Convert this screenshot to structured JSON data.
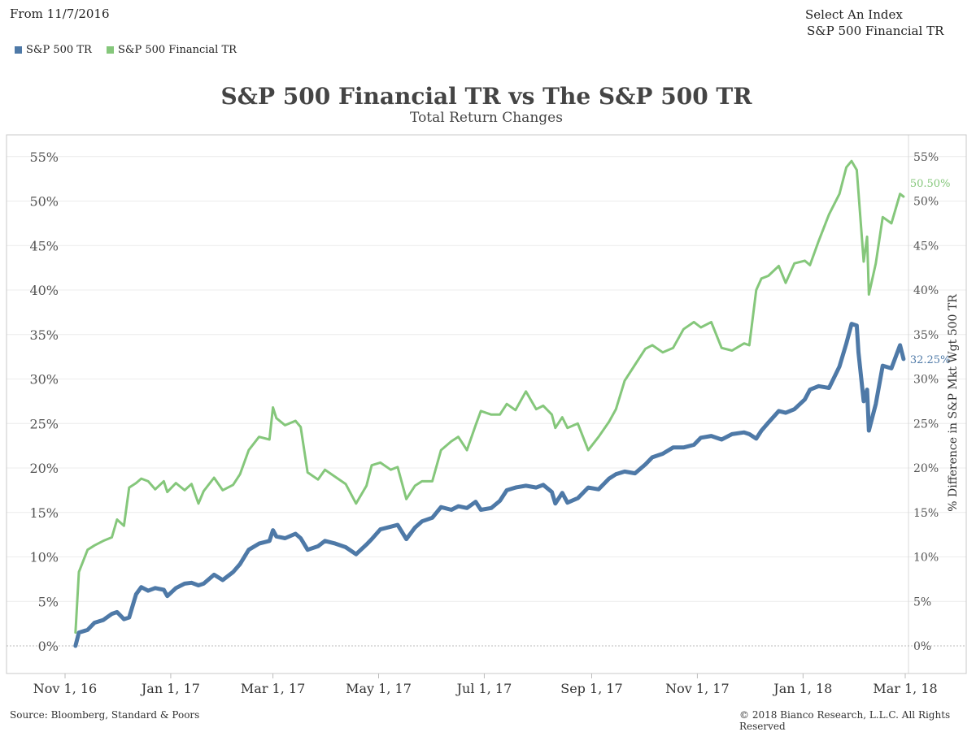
{
  "header": {
    "from_label": "From 11/7/2016",
    "index_selector_label": "Select An Index",
    "index_selector_value": "S&P 500 Financial TR"
  },
  "footer": {
    "source": "Source: Bloomberg, Standard & Poors",
    "copyright": "© 2018 Bianco Research, L.L.C. All Rights Reserved"
  },
  "chart_data": {
    "type": "line",
    "title": "S&P 500 Financial TR vs The S&P 500 TR",
    "subtitle": "Total Return Changes",
    "ylabel": "",
    "y2label": "% Difference in S&P Mkt Wgt 500 TR",
    "xlabel": "",
    "ylim": [
      0,
      55
    ],
    "yticks": [
      "0%",
      "5%",
      "10%",
      "15%",
      "20%",
      "25%",
      "30%",
      "35%",
      "40%",
      "45%",
      "50%",
      "55%"
    ],
    "xlim": [
      "2016-11-01",
      "2018-03-01"
    ],
    "xticks": [
      {
        "date": "2016-11-01",
        "label": "Nov 1, 16"
      },
      {
        "date": "2017-01-01",
        "label": "Jan 1, 17"
      },
      {
        "date": "2017-03-01",
        "label": "Mar 1, 17"
      },
      {
        "date": "2017-05-01",
        "label": "May 1, 17"
      },
      {
        "date": "2017-07-01",
        "label": "Jul 1, 17"
      },
      {
        "date": "2017-09-01",
        "label": "Sep 1, 17"
      },
      {
        "date": "2017-11-01",
        "label": "Nov 1, 17"
      },
      {
        "date": "2018-01-01",
        "label": "Jan 1, 18"
      },
      {
        "date": "2018-03-01",
        "label": "Mar 1, 18"
      }
    ],
    "grid": true,
    "legend_position": "top-left",
    "series": [
      {
        "name": "S&P 500 TR",
        "color": "#4e79a7",
        "end_label": "32.25%",
        "points": [
          [
            "2016-11-07",
            0.0
          ],
          [
            "2016-11-09",
            1.5
          ],
          [
            "2016-11-14",
            1.8
          ],
          [
            "2016-11-18",
            2.6
          ],
          [
            "2016-11-23",
            2.9
          ],
          [
            "2016-11-28",
            3.6
          ],
          [
            "2016-12-01",
            3.8
          ],
          [
            "2016-12-05",
            3.0
          ],
          [
            "2016-12-08",
            3.2
          ],
          [
            "2016-12-12",
            5.8
          ],
          [
            "2016-12-15",
            6.6
          ],
          [
            "2016-12-19",
            6.2
          ],
          [
            "2016-12-23",
            6.5
          ],
          [
            "2016-12-28",
            6.3
          ],
          [
            "2016-12-30",
            5.6
          ],
          [
            "2017-01-04",
            6.5
          ],
          [
            "2017-01-09",
            7.0
          ],
          [
            "2017-01-13",
            7.1
          ],
          [
            "2017-01-17",
            6.8
          ],
          [
            "2017-01-20",
            7.0
          ],
          [
            "2017-01-26",
            8.0
          ],
          [
            "2017-01-31",
            7.4
          ],
          [
            "2017-02-06",
            8.3
          ],
          [
            "2017-02-10",
            9.2
          ],
          [
            "2017-02-15",
            10.8
          ],
          [
            "2017-02-21",
            11.5
          ],
          [
            "2017-02-27",
            11.8
          ],
          [
            "2017-03-01",
            13.0
          ],
          [
            "2017-03-03",
            12.3
          ],
          [
            "2017-03-08",
            12.1
          ],
          [
            "2017-03-14",
            12.6
          ],
          [
            "2017-03-17",
            12.1
          ],
          [
            "2017-03-21",
            10.8
          ],
          [
            "2017-03-27",
            11.2
          ],
          [
            "2017-03-31",
            11.8
          ],
          [
            "2017-04-06",
            11.5
          ],
          [
            "2017-04-12",
            11.1
          ],
          [
            "2017-04-18",
            10.3
          ],
          [
            "2017-04-24",
            11.4
          ],
          [
            "2017-04-27",
            12.0
          ],
          [
            "2017-05-02",
            13.1
          ],
          [
            "2017-05-08",
            13.4
          ],
          [
            "2017-05-12",
            13.6
          ],
          [
            "2017-05-17",
            12.0
          ],
          [
            "2017-05-22",
            13.3
          ],
          [
            "2017-05-26",
            14.0
          ],
          [
            "2017-06-01",
            14.4
          ],
          [
            "2017-06-06",
            15.6
          ],
          [
            "2017-06-12",
            15.3
          ],
          [
            "2017-06-16",
            15.7
          ],
          [
            "2017-06-21",
            15.5
          ],
          [
            "2017-06-26",
            16.2
          ],
          [
            "2017-06-29",
            15.3
          ],
          [
            "2017-07-05",
            15.5
          ],
          [
            "2017-07-10",
            16.3
          ],
          [
            "2017-07-14",
            17.5
          ],
          [
            "2017-07-19",
            17.8
          ],
          [
            "2017-07-25",
            18.0
          ],
          [
            "2017-07-31",
            17.8
          ],
          [
            "2017-08-04",
            18.1
          ],
          [
            "2017-08-09",
            17.3
          ],
          [
            "2017-08-11",
            16.0
          ],
          [
            "2017-08-15",
            17.2
          ],
          [
            "2017-08-18",
            16.1
          ],
          [
            "2017-08-24",
            16.6
          ],
          [
            "2017-08-30",
            17.8
          ],
          [
            "2017-09-05",
            17.6
          ],
          [
            "2017-09-11",
            18.8
          ],
          [
            "2017-09-15",
            19.3
          ],
          [
            "2017-09-20",
            19.6
          ],
          [
            "2017-09-26",
            19.4
          ],
          [
            "2017-10-02",
            20.4
          ],
          [
            "2017-10-06",
            21.2
          ],
          [
            "2017-10-12",
            21.6
          ],
          [
            "2017-10-18",
            22.3
          ],
          [
            "2017-10-24",
            22.3
          ],
          [
            "2017-10-30",
            22.6
          ],
          [
            "2017-11-03",
            23.4
          ],
          [
            "2017-11-09",
            23.6
          ],
          [
            "2017-11-15",
            23.2
          ],
          [
            "2017-11-21",
            23.8
          ],
          [
            "2017-11-28",
            24.0
          ],
          [
            "2017-12-01",
            23.8
          ],
          [
            "2017-12-05",
            23.3
          ],
          [
            "2017-12-08",
            24.2
          ],
          [
            "2017-12-12",
            25.1
          ],
          [
            "2017-12-18",
            26.4
          ],
          [
            "2017-12-22",
            26.2
          ],
          [
            "2017-12-27",
            26.6
          ],
          [
            "2018-01-02",
            27.7
          ],
          [
            "2018-01-05",
            28.8
          ],
          [
            "2018-01-10",
            29.2
          ],
          [
            "2018-01-16",
            29.0
          ],
          [
            "2018-01-22",
            31.4
          ],
          [
            "2018-01-26",
            34.0
          ],
          [
            "2018-01-29",
            36.2
          ],
          [
            "2018-02-01",
            36.0
          ],
          [
            "2018-02-02",
            33.0
          ],
          [
            "2018-02-05",
            27.5
          ],
          [
            "2018-02-07",
            28.8
          ],
          [
            "2018-02-08",
            24.2
          ],
          [
            "2018-02-12",
            27.2
          ],
          [
            "2018-02-16",
            31.5
          ],
          [
            "2018-02-21",
            31.2
          ],
          [
            "2018-02-26",
            33.8
          ],
          [
            "2018-02-28",
            32.25
          ]
        ]
      },
      {
        "name": "S&P 500 Financial TR",
        "color": "#85c77b",
        "end_label": "50.50%",
        "points": [
          [
            "2016-11-07",
            1.5
          ],
          [
            "2016-11-09",
            8.3
          ],
          [
            "2016-11-14",
            10.8
          ],
          [
            "2016-11-18",
            11.3
          ],
          [
            "2016-11-23",
            11.8
          ],
          [
            "2016-11-28",
            12.2
          ],
          [
            "2016-12-01",
            14.2
          ],
          [
            "2016-12-05",
            13.5
          ],
          [
            "2016-12-08",
            17.8
          ],
          [
            "2016-12-12",
            18.3
          ],
          [
            "2016-12-15",
            18.8
          ],
          [
            "2016-12-19",
            18.5
          ],
          [
            "2016-12-23",
            17.6
          ],
          [
            "2016-12-28",
            18.5
          ],
          [
            "2016-12-30",
            17.3
          ],
          [
            "2017-01-04",
            18.3
          ],
          [
            "2017-01-09",
            17.5
          ],
          [
            "2017-01-13",
            18.2
          ],
          [
            "2017-01-17",
            16.0
          ],
          [
            "2017-01-20",
            17.4
          ],
          [
            "2017-01-26",
            18.9
          ],
          [
            "2017-01-31",
            17.5
          ],
          [
            "2017-02-06",
            18.1
          ],
          [
            "2017-02-10",
            19.3
          ],
          [
            "2017-02-15",
            22.0
          ],
          [
            "2017-02-21",
            23.5
          ],
          [
            "2017-02-27",
            23.2
          ],
          [
            "2017-03-01",
            26.8
          ],
          [
            "2017-03-03",
            25.6
          ],
          [
            "2017-03-08",
            24.8
          ],
          [
            "2017-03-14",
            25.3
          ],
          [
            "2017-03-17",
            24.6
          ],
          [
            "2017-03-21",
            19.5
          ],
          [
            "2017-03-27",
            18.7
          ],
          [
            "2017-03-31",
            19.8
          ],
          [
            "2017-04-06",
            19.0
          ],
          [
            "2017-04-12",
            18.2
          ],
          [
            "2017-04-18",
            16.0
          ],
          [
            "2017-04-24",
            18.0
          ],
          [
            "2017-04-27",
            20.3
          ],
          [
            "2017-05-02",
            20.6
          ],
          [
            "2017-05-08",
            19.8
          ],
          [
            "2017-05-12",
            20.1
          ],
          [
            "2017-05-17",
            16.5
          ],
          [
            "2017-05-22",
            18.0
          ],
          [
            "2017-05-26",
            18.5
          ],
          [
            "2017-06-01",
            18.5
          ],
          [
            "2017-06-06",
            22.0
          ],
          [
            "2017-06-12",
            23.0
          ],
          [
            "2017-06-16",
            23.5
          ],
          [
            "2017-06-21",
            22.0
          ],
          [
            "2017-06-26",
            24.8
          ],
          [
            "2017-06-29",
            26.4
          ],
          [
            "2017-07-05",
            26.0
          ],
          [
            "2017-07-10",
            26.0
          ],
          [
            "2017-07-14",
            27.2
          ],
          [
            "2017-07-19",
            26.5
          ],
          [
            "2017-07-25",
            28.6
          ],
          [
            "2017-07-31",
            26.6
          ],
          [
            "2017-08-04",
            27.0
          ],
          [
            "2017-08-09",
            26.0
          ],
          [
            "2017-08-11",
            24.5
          ],
          [
            "2017-08-15",
            25.7
          ],
          [
            "2017-08-18",
            24.5
          ],
          [
            "2017-08-24",
            25.0
          ],
          [
            "2017-08-30",
            22.0
          ],
          [
            "2017-09-05",
            23.5
          ],
          [
            "2017-09-11",
            25.2
          ],
          [
            "2017-09-15",
            26.6
          ],
          [
            "2017-09-20",
            29.8
          ],
          [
            "2017-09-26",
            31.6
          ],
          [
            "2017-10-02",
            33.4
          ],
          [
            "2017-10-06",
            33.8
          ],
          [
            "2017-10-12",
            33.0
          ],
          [
            "2017-10-18",
            33.5
          ],
          [
            "2017-10-24",
            35.6
          ],
          [
            "2017-10-30",
            36.4
          ],
          [
            "2017-11-03",
            35.8
          ],
          [
            "2017-11-09",
            36.4
          ],
          [
            "2017-11-15",
            33.5
          ],
          [
            "2017-11-21",
            33.2
          ],
          [
            "2017-11-28",
            34.0
          ],
          [
            "2017-12-01",
            33.8
          ],
          [
            "2017-12-05",
            40.0
          ],
          [
            "2017-12-08",
            41.3
          ],
          [
            "2017-12-12",
            41.6
          ],
          [
            "2017-12-18",
            42.7
          ],
          [
            "2017-12-22",
            40.8
          ],
          [
            "2017-12-27",
            43.0
          ],
          [
            "2018-01-02",
            43.3
          ],
          [
            "2018-01-05",
            42.8
          ],
          [
            "2018-01-10",
            45.5
          ],
          [
            "2018-01-16",
            48.5
          ],
          [
            "2018-01-22",
            50.8
          ],
          [
            "2018-01-26",
            53.8
          ],
          [
            "2018-01-29",
            54.5
          ],
          [
            "2018-02-01",
            53.5
          ],
          [
            "2018-02-02",
            51.0
          ],
          [
            "2018-02-05",
            43.2
          ],
          [
            "2018-02-07",
            46.0
          ],
          [
            "2018-02-08",
            39.5
          ],
          [
            "2018-02-12",
            43.0
          ],
          [
            "2018-02-16",
            48.2
          ],
          [
            "2018-02-21",
            47.5
          ],
          [
            "2018-02-26",
            50.8
          ],
          [
            "2018-02-28",
            50.5
          ]
        ]
      }
    ]
  }
}
